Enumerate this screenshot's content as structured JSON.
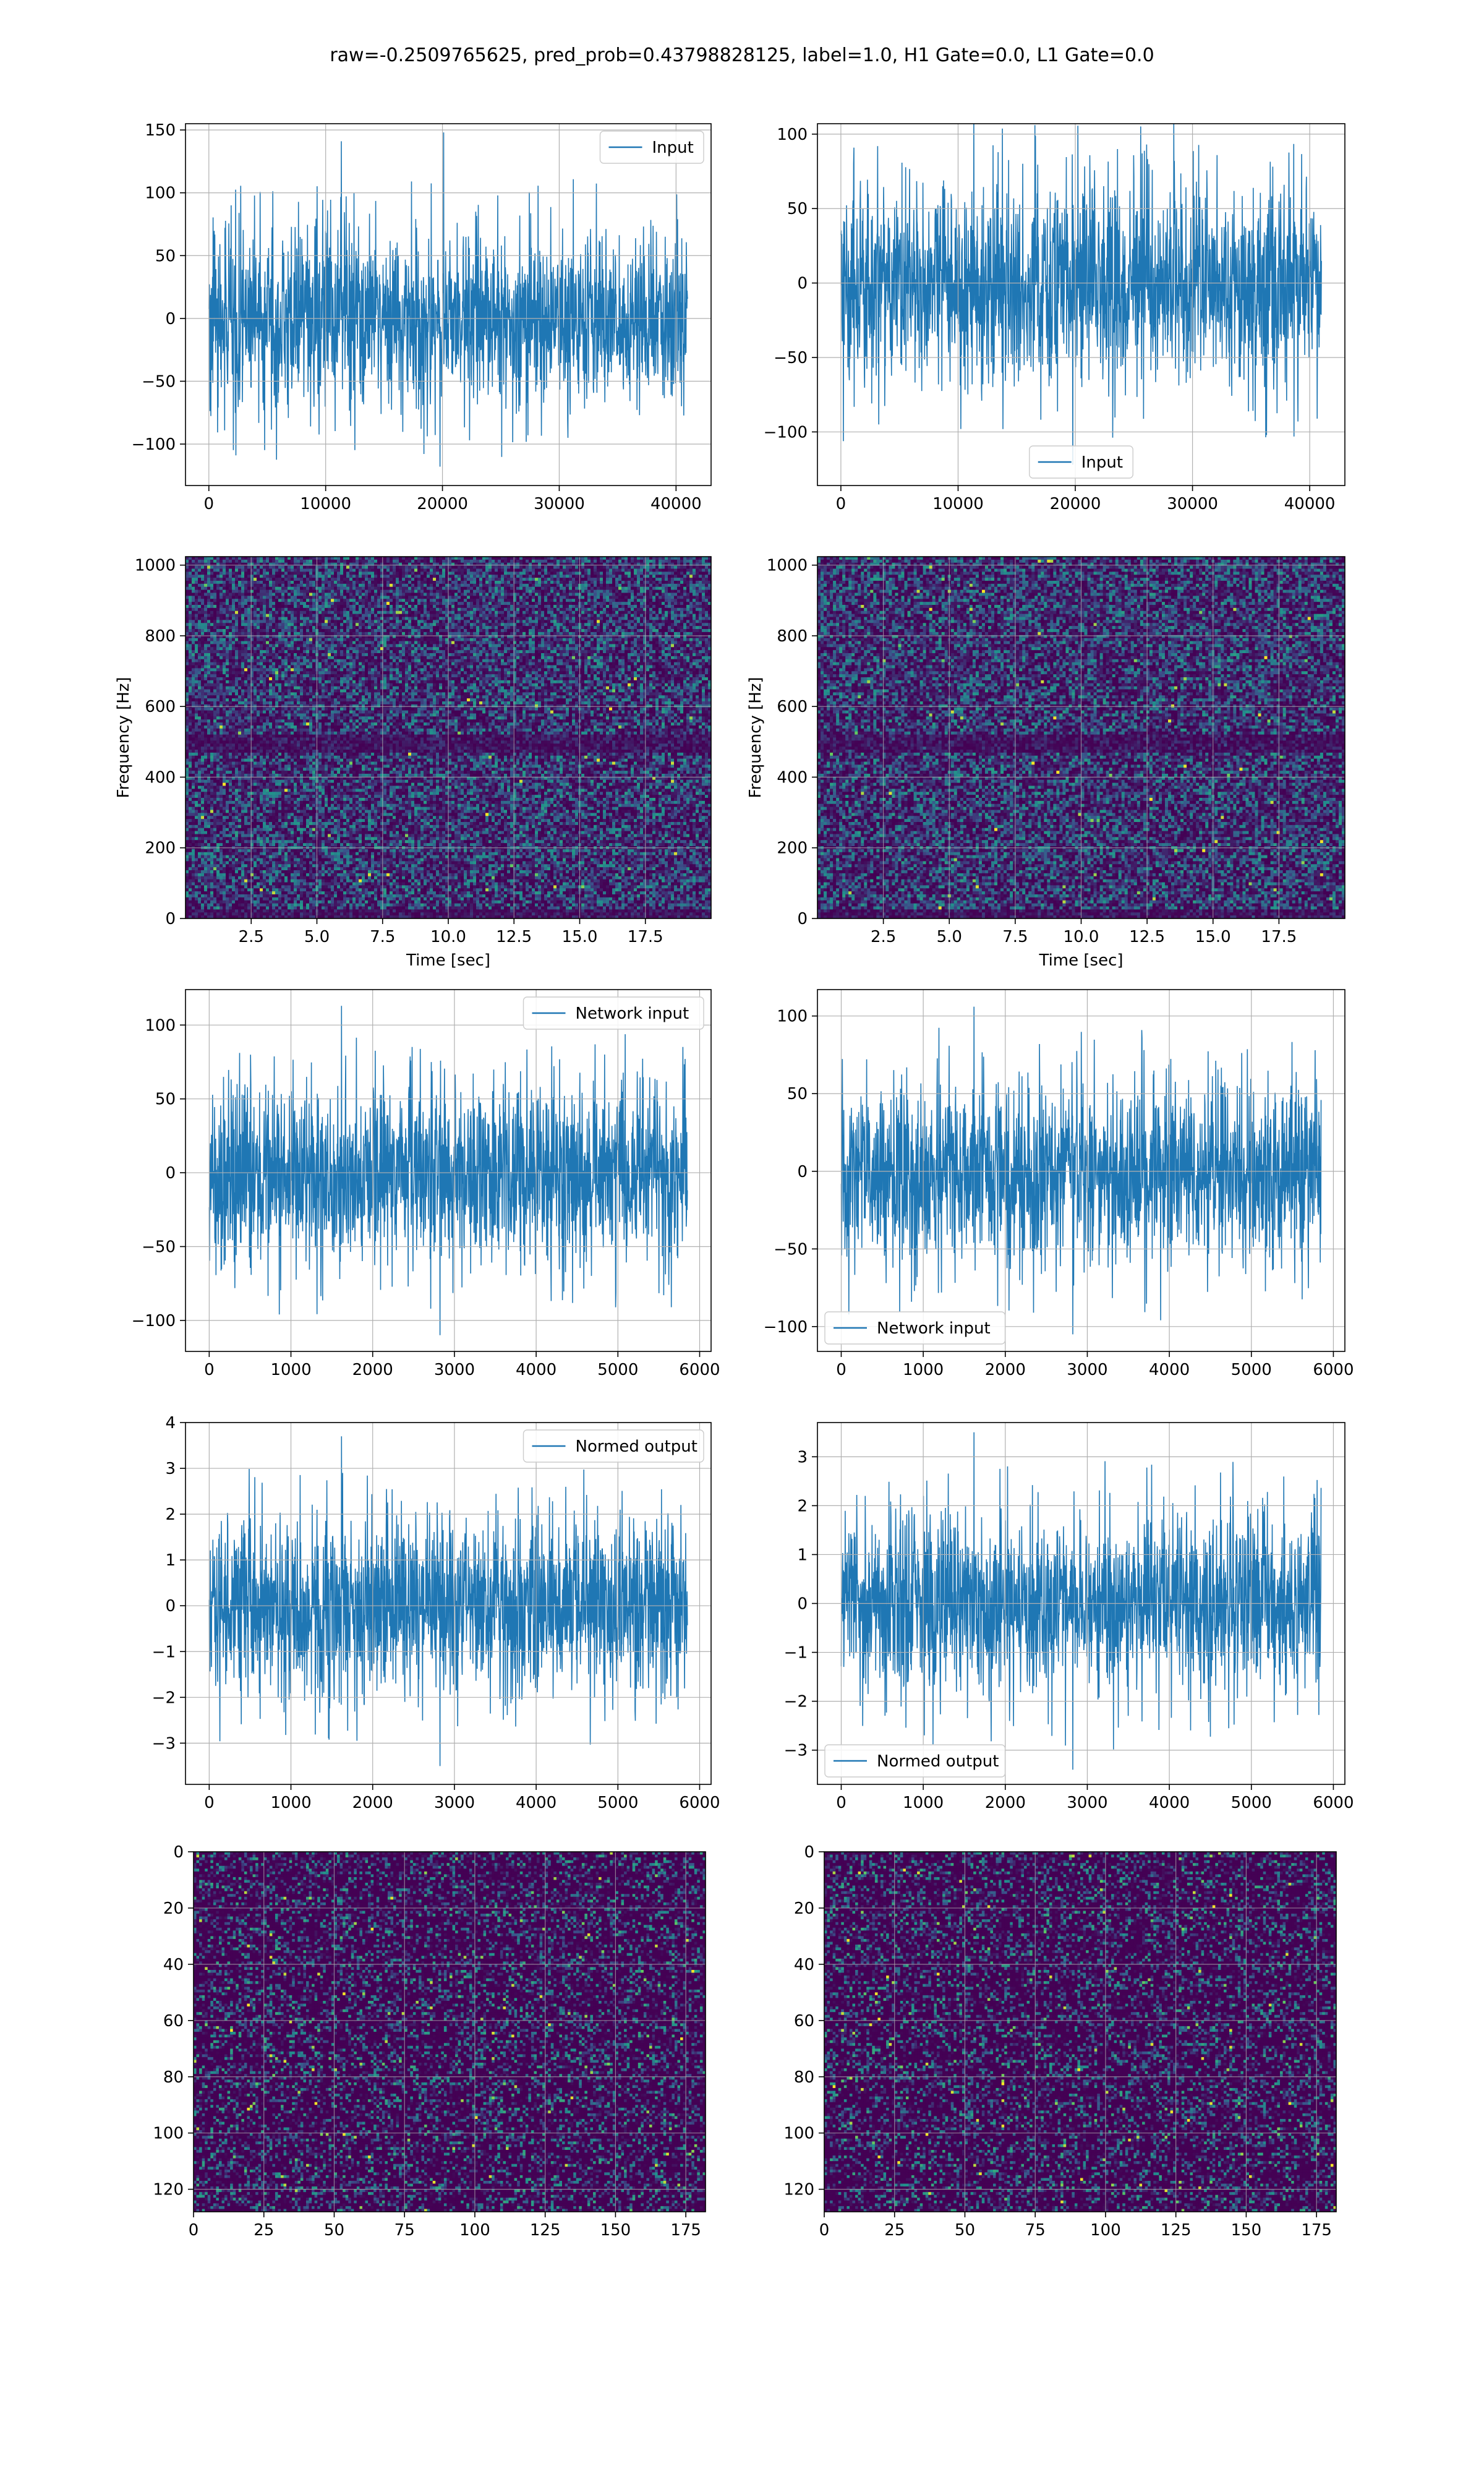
{
  "suptitle": "raw=-0.2509765625, pred_prob=0.43798828125, label=1.0, H1 Gate=0.0, L1 Gate=0.0",
  "colors": {
    "line": "#1f77b4",
    "grid": "#b0b0b0",
    "frame": "#000000",
    "viridis": [
      "#440154",
      "#3b528b",
      "#21918c",
      "#5ec962",
      "#fde725"
    ]
  },
  "chart_data": [
    {
      "id": "p1",
      "type": "line",
      "style": "noise",
      "series": [
        {
          "name": "Input",
          "amp": 90,
          "spikes": [
            141,
            -118
          ],
          "n": 41000
        }
      ],
      "xticks": [
        0,
        10000,
        20000,
        30000,
        40000
      ],
      "yticks": [
        -100,
        -50,
        0,
        50,
        100,
        150
      ],
      "xlim": [
        -2000,
        43000
      ],
      "ylim": [
        -133,
        155
      ],
      "legend": "upper right",
      "grid": true
    },
    {
      "id": "p2",
      "type": "line",
      "style": "noise",
      "series": [
        {
          "name": "Input",
          "amp": 85,
          "spikes": [
            114,
            -122
          ],
          "n": 41000
        }
      ],
      "xticks": [
        0,
        10000,
        20000,
        30000,
        40000
      ],
      "yticks": [
        -100,
        -50,
        0,
        50,
        100
      ],
      "xlim": [
        -2000,
        43000
      ],
      "ylim": [
        -136,
        107
      ],
      "legend": "lower center",
      "grid": true
    },
    {
      "id": "p3",
      "type": "heatmap",
      "style": "spectrogram",
      "xlabel": "Time [sec]",
      "ylabel": "Frequency [Hz]",
      "xticks": [
        "2.5",
        "5.0",
        "7.5",
        "10.0",
        "12.5",
        "15.0",
        "17.5"
      ],
      "yticks": [
        0,
        200,
        400,
        600,
        800,
        1000
      ],
      "xlim": [
        0,
        20
      ],
      "ylim": [
        0,
        1024
      ],
      "grid": true
    },
    {
      "id": "p4",
      "type": "heatmap",
      "style": "spectrogram",
      "xlabel": "Time [sec]",
      "ylabel": "Frequency [Hz]",
      "xticks": [
        "2.5",
        "5.0",
        "7.5",
        "10.0",
        "12.5",
        "15.0",
        "17.5"
      ],
      "yticks": [
        0,
        200,
        400,
        600,
        800,
        1000
      ],
      "xlim": [
        0,
        20
      ],
      "ylim": [
        0,
        1024
      ],
      "grid": true
    },
    {
      "id": "p5",
      "type": "line",
      "style": "noise",
      "series": [
        {
          "name": "Network input",
          "amp": 80,
          "spikes": [
            113,
            -110
          ],
          "n": 5850
        }
      ],
      "xticks": [
        0,
        1000,
        2000,
        3000,
        4000,
        5000,
        6000
      ],
      "yticks": [
        -100,
        -50,
        0,
        50,
        100
      ],
      "xlim": [
        -290,
        6140
      ],
      "ylim": [
        -121,
        124
      ],
      "legend": "upper right",
      "grid": true
    },
    {
      "id": "p6",
      "type": "line",
      "style": "noise",
      "series": [
        {
          "name": "Network input",
          "amp": 75,
          "spikes": [
            106,
            -105
          ],
          "n": 5850
        }
      ],
      "xticks": [
        0,
        1000,
        2000,
        3000,
        4000,
        5000,
        6000
      ],
      "yticks": [
        -100,
        -50,
        0,
        50,
        100
      ],
      "xlim": [
        -290,
        6140
      ],
      "ylim": [
        -116,
        117
      ],
      "legend": "lower left",
      "grid": true
    },
    {
      "id": "p7",
      "type": "line",
      "style": "noise",
      "series": [
        {
          "name": "Normed output",
          "amp": 2.4,
          "spikes": [
            3.7,
            -3.5
          ],
          "n": 5850
        }
      ],
      "xticks": [
        0,
        1000,
        2000,
        3000,
        4000,
        5000,
        6000
      ],
      "yticks": [
        -3,
        -2,
        -1,
        0,
        1,
        2,
        3,
        4
      ],
      "xlim": [
        -290,
        6140
      ],
      "ylim": [
        -3.9,
        4.0
      ],
      "legend": "upper right",
      "grid": true
    },
    {
      "id": "p8",
      "type": "line",
      "style": "noise",
      "series": [
        {
          "name": "Normed output",
          "amp": 2.4,
          "spikes": [
            3.5,
            -3.4
          ],
          "n": 5850
        }
      ],
      "xticks": [
        0,
        1000,
        2000,
        3000,
        4000,
        5000,
        6000
      ],
      "yticks": [
        -3,
        -2,
        -1,
        0,
        1,
        2,
        3
      ],
      "xlim": [
        -290,
        6140
      ],
      "ylim": [
        -3.7,
        3.7
      ],
      "legend": "lower left",
      "grid": true
    },
    {
      "id": "p9",
      "type": "heatmap",
      "style": "matrix",
      "xticks": [
        0,
        25,
        50,
        75,
        100,
        125,
        150,
        175
      ],
      "yticks": [
        0,
        20,
        40,
        60,
        80,
        100,
        120
      ],
      "xlim": [
        0,
        182
      ],
      "ylim": [
        128,
        0
      ],
      "grid": true
    },
    {
      "id": "p10",
      "type": "heatmap",
      "style": "matrix",
      "xticks": [
        0,
        25,
        50,
        75,
        100,
        125,
        150,
        175
      ],
      "yticks": [
        0,
        20,
        40,
        60,
        80,
        100,
        120
      ],
      "xlim": [
        0,
        182
      ],
      "ylim": [
        128,
        0
      ],
      "grid": true
    }
  ]
}
